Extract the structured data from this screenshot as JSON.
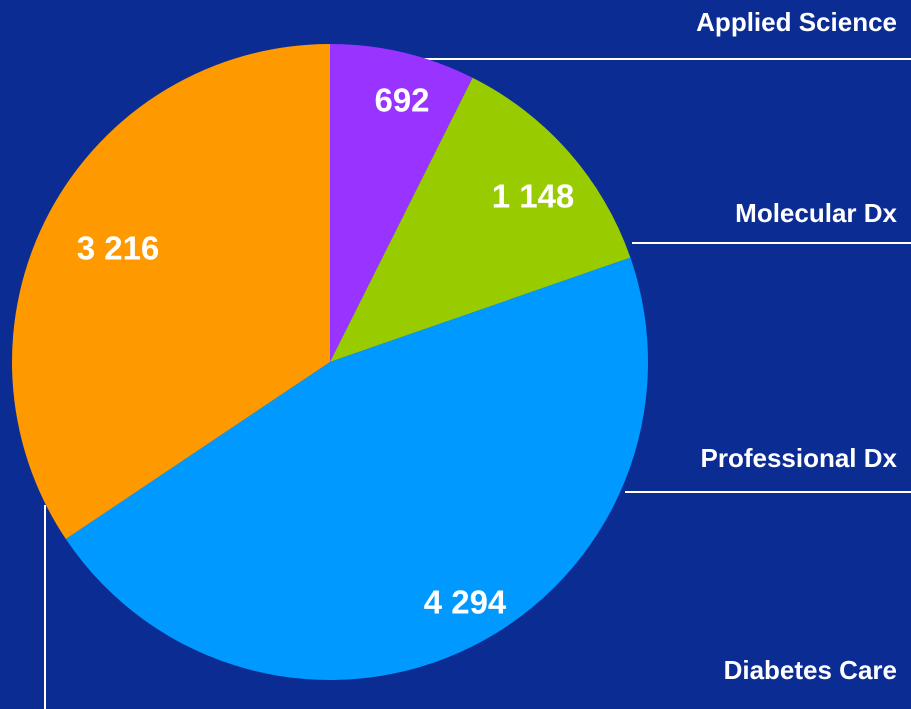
{
  "chart_data": {
    "type": "pie",
    "categories": [
      "Applied Science",
      "Molecular Dx",
      "Professional Dx",
      "Diabetes Care"
    ],
    "values": [
      692,
      1148,
      4294,
      3216
    ],
    "value_labels": [
      "692",
      "1 148",
      "4 294",
      "3 216"
    ],
    "colors": [
      "#9933ff",
      "#99cc00",
      "#0099ff",
      "#ff9900"
    ],
    "background": "#0b2c93"
  }
}
